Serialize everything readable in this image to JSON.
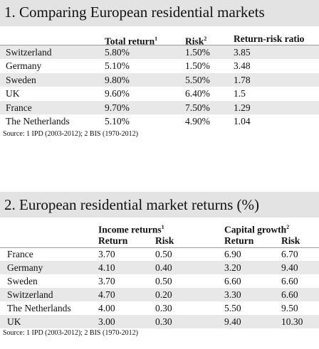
{
  "table1": {
    "title": "1. Comparing European residential markets",
    "columns": [
      {
        "text": "Total return",
        "note": "1"
      },
      {
        "text": "Risk",
        "note": "2"
      },
      {
        "text": "Return-risk ratio"
      }
    ],
    "rows": [
      [
        "Switzerland",
        "5.80%",
        "1.50%",
        "3.85"
      ],
      [
        "Germany",
        "5.10%",
        "1.50%",
        "3.48"
      ],
      [
        "Sweden",
        "9.80%",
        "5.50%",
        "1.78"
      ],
      [
        "UK",
        "9.60%",
        "6.40%",
        "1.5"
      ],
      [
        "France",
        "9.70%",
        "7.50%",
        "1.29"
      ],
      [
        "The Netherlands",
        "5.10%",
        "4.90%",
        "1.04"
      ]
    ],
    "source": "Source: 1 IPD (2003-2012); 2 BIS (1970-2012)"
  },
  "table2": {
    "title": "2. European residential market returns (%)",
    "groups": [
      {
        "text": "Income returns",
        "note": "1"
      },
      {
        "text": "Capital growth",
        "note": "2"
      }
    ],
    "subheaders": [
      "Return",
      "Risk",
      "Return",
      "Risk"
    ],
    "rows": [
      [
        "France",
        "3.70",
        "0.50",
        "6.90",
        "6.70"
      ],
      [
        "Germany",
        "4.10",
        "0.40",
        "3.20",
        "9.40"
      ],
      [
        "Sweden",
        "3.70",
        "0.50",
        "6.60",
        "6.60"
      ],
      [
        "Switzerland",
        "4.70",
        "0.20",
        "3.30",
        "6.60"
      ],
      [
        "The Netherlands",
        "4.00",
        "0.30",
        "5.50",
        "9.50"
      ],
      [
        "UK",
        "3.00",
        "0.30",
        "9.40",
        "10.30"
      ]
    ],
    "source": "Source: 1 IPD (2003-2012); 2 BIS (1970-2012)"
  }
}
